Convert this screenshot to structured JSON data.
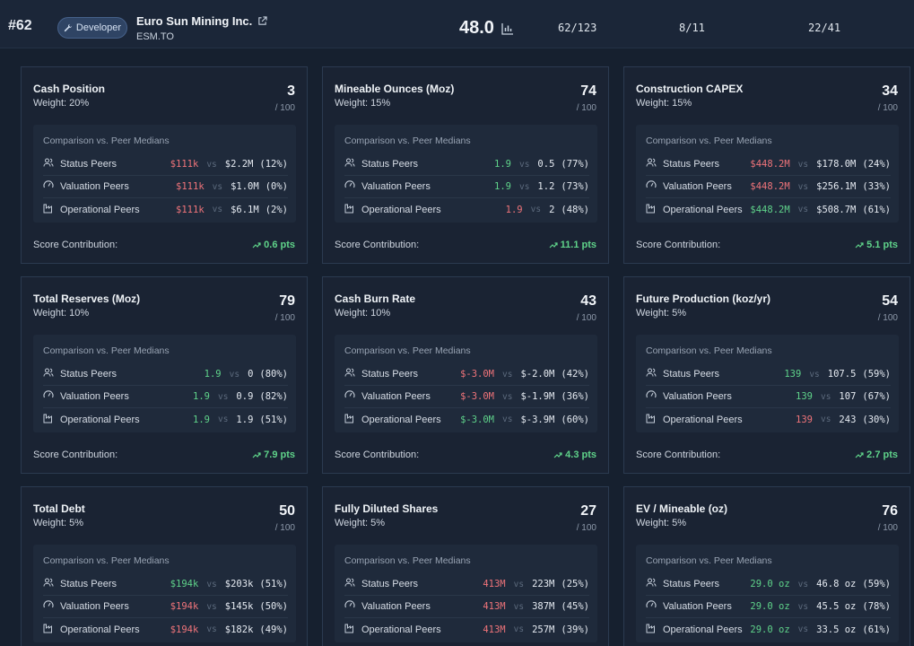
{
  "header": {
    "rank": "#62",
    "badge": "Developer",
    "company": "Euro Sun Mining Inc.",
    "ticker": "ESM.TO",
    "score": "48.0",
    "stats": [
      "62/123",
      "8/11",
      "22/41"
    ]
  },
  "labels": {
    "comparison": "Comparison vs. Peer Medians",
    "contribution": "Score Contribution:",
    "out_of": "/ 100",
    "vs": "vs"
  },
  "colors": {
    "bad": "#f0747a",
    "good": "#5fd38a"
  },
  "cards": [
    {
      "title": "Cash Position",
      "weight": "Weight: 20%",
      "score": "3",
      "contribution": "0.6 pts",
      "rows": [
        {
          "label": "Status Peers",
          "icon": "users-icon",
          "own": "$111k",
          "own_status": "bad",
          "peer": "$2.2M",
          "pct": "(12%)"
        },
        {
          "label": "Valuation Peers",
          "icon": "gauge-icon",
          "own": "$111k",
          "own_status": "bad",
          "peer": "$1.0M",
          "pct": "(0%)"
        },
        {
          "label": "Operational Peers",
          "icon": "factory-icon",
          "own": "$111k",
          "own_status": "bad",
          "peer": "$6.1M",
          "pct": "(2%)"
        }
      ]
    },
    {
      "title": "Mineable Ounces (Moz)",
      "weight": "Weight: 15%",
      "score": "74",
      "contribution": "11.1 pts",
      "rows": [
        {
          "label": "Status Peers",
          "icon": "users-icon",
          "own": "1.9",
          "own_status": "good",
          "peer": "0.5",
          "pct": "(77%)"
        },
        {
          "label": "Valuation Peers",
          "icon": "gauge-icon",
          "own": "1.9",
          "own_status": "good",
          "peer": "1.2",
          "pct": "(73%)"
        },
        {
          "label": "Operational Peers",
          "icon": "factory-icon",
          "own": "1.9",
          "own_status": "bad",
          "peer": "2",
          "pct": "(48%)"
        }
      ]
    },
    {
      "title": "Construction CAPEX",
      "weight": "Weight: 15%",
      "score": "34",
      "contribution": "5.1 pts",
      "rows": [
        {
          "label": "Status Peers",
          "icon": "users-icon",
          "own": "$448.2M",
          "own_status": "bad",
          "peer": "$178.0M",
          "pct": "(24%)"
        },
        {
          "label": "Valuation Peers",
          "icon": "gauge-icon",
          "own": "$448.2M",
          "own_status": "bad",
          "peer": "$256.1M",
          "pct": "(33%)"
        },
        {
          "label": "Operational Peers",
          "icon": "factory-icon",
          "own": "$448.2M",
          "own_status": "good",
          "peer": "$508.7M",
          "pct": "(61%)"
        }
      ]
    },
    {
      "title": "Total Reserves (Moz)",
      "weight": "Weight: 10%",
      "score": "79",
      "contribution": "7.9 pts",
      "rows": [
        {
          "label": "Status Peers",
          "icon": "users-icon",
          "own": "1.9",
          "own_status": "good",
          "peer": "0",
          "pct": "(80%)"
        },
        {
          "label": "Valuation Peers",
          "icon": "gauge-icon",
          "own": "1.9",
          "own_status": "good",
          "peer": "0.9",
          "pct": "(82%)"
        },
        {
          "label": "Operational Peers",
          "icon": "factory-icon",
          "own": "1.9",
          "own_status": "good",
          "peer": "1.9",
          "pct": "(51%)"
        }
      ]
    },
    {
      "title": "Cash Burn Rate",
      "weight": "Weight: 10%",
      "score": "43",
      "contribution": "4.3 pts",
      "rows": [
        {
          "label": "Status Peers",
          "icon": "users-icon",
          "own": "$-3.0M",
          "own_status": "bad",
          "peer": "$-2.0M",
          "pct": "(42%)"
        },
        {
          "label": "Valuation Peers",
          "icon": "gauge-icon",
          "own": "$-3.0M",
          "own_status": "bad",
          "peer": "$-1.9M",
          "pct": "(36%)"
        },
        {
          "label": "Operational Peers",
          "icon": "factory-icon",
          "own": "$-3.0M",
          "own_status": "good",
          "peer": "$-3.9M",
          "pct": "(60%)"
        }
      ]
    },
    {
      "title": "Future Production (koz/yr)",
      "weight": "Weight: 5%",
      "score": "54",
      "contribution": "2.7 pts",
      "rows": [
        {
          "label": "Status Peers",
          "icon": "users-icon",
          "own": "139",
          "own_status": "good",
          "peer": "107.5",
          "pct": "(59%)"
        },
        {
          "label": "Valuation Peers",
          "icon": "gauge-icon",
          "own": "139",
          "own_status": "good",
          "peer": "107",
          "pct": "(67%)"
        },
        {
          "label": "Operational Peers",
          "icon": "factory-icon",
          "own": "139",
          "own_status": "bad",
          "peer": "243",
          "pct": "(30%)"
        }
      ]
    },
    {
      "title": "Total Debt",
      "weight": "Weight: 5%",
      "score": "50",
      "contribution": "",
      "rows": [
        {
          "label": "Status Peers",
          "icon": "users-icon",
          "own": "$194k",
          "own_status": "good",
          "peer": "$203k",
          "pct": "(51%)"
        },
        {
          "label": "Valuation Peers",
          "icon": "gauge-icon",
          "own": "$194k",
          "own_status": "bad",
          "peer": "$145k",
          "pct": "(50%)"
        },
        {
          "label": "Operational Peers",
          "icon": "factory-icon",
          "own": "$194k",
          "own_status": "bad",
          "peer": "$182k",
          "pct": "(49%)"
        }
      ]
    },
    {
      "title": "Fully Diluted Shares",
      "weight": "Weight: 5%",
      "score": "27",
      "contribution": "",
      "rows": [
        {
          "label": "Status Peers",
          "icon": "users-icon",
          "own": "413M",
          "own_status": "bad",
          "peer": "223M",
          "pct": "(25%)"
        },
        {
          "label": "Valuation Peers",
          "icon": "gauge-icon",
          "own": "413M",
          "own_status": "bad",
          "peer": "387M",
          "pct": "(45%)"
        },
        {
          "label": "Operational Peers",
          "icon": "factory-icon",
          "own": "413M",
          "own_status": "bad",
          "peer": "257M",
          "pct": "(39%)"
        }
      ]
    },
    {
      "title": "EV / Mineable (oz)",
      "weight": "Weight: 5%",
      "score": "76",
      "contribution": "",
      "rows": [
        {
          "label": "Status Peers",
          "icon": "users-icon",
          "own": "29.0 oz",
          "own_status": "good",
          "peer": "46.8 oz",
          "pct": "(59%)"
        },
        {
          "label": "Valuation Peers",
          "icon": "gauge-icon",
          "own": "29.0 oz",
          "own_status": "good",
          "peer": "45.5 oz",
          "pct": "(78%)"
        },
        {
          "label": "Operational Peers",
          "icon": "factory-icon",
          "own": "29.0 oz",
          "own_status": "good",
          "peer": "33.5 oz",
          "pct": "(61%)"
        }
      ]
    }
  ]
}
